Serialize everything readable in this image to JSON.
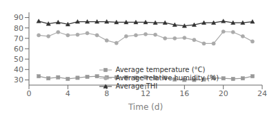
{
  "chart_data": {
    "type": "line",
    "xlabel": "Time (d)",
    "x": [
      1,
      2,
      3,
      4,
      5,
      6,
      7,
      8,
      9,
      10,
      11,
      12,
      13,
      14,
      15,
      16,
      17,
      18,
      19,
      20,
      21,
      22,
      23
    ],
    "series": [
      {
        "name": "Average temperature (°C)",
        "color": "#999999",
        "marker": "square",
        "values": [
          33.5,
          31.5,
          32.5,
          31.0,
          32.0,
          33.0,
          33.5,
          32.5,
          32.5,
          32.5,
          32.0,
          32.5,
          32.0,
          32.0,
          30.5,
          30.0,
          30.0,
          30.5,
          32.0,
          31.5,
          31.0,
          31.5,
          33.5
        ]
      },
      {
        "name": "Average relative humidity (%)",
        "color": "#aaaaaa",
        "marker": "circle",
        "values": [
          73.0,
          72.0,
          76.0,
          73.0,
          73.5,
          75.0,
          73.0,
          68.0,
          65.5,
          72.0,
          73.0,
          74.0,
          73.5,
          70.0,
          70.0,
          70.5,
          68.5,
          65.0,
          65.0,
          76.5,
          76.0,
          72.0,
          67.0
        ]
      },
      {
        "name": "Average THI",
        "color": "#333333",
        "marker": "triangle",
        "values": [
          86.5,
          84.0,
          85.5,
          83.5,
          86.0,
          86.0,
          86.0,
          86.0,
          85.5,
          85.5,
          85.5,
          85.5,
          85.0,
          85.0,
          83.0,
          82.0,
          83.0,
          85.0,
          85.0,
          86.5,
          85.0,
          85.0,
          86.0
        ]
      }
    ],
    "xlim": [
      0,
      24
    ],
    "ylim": [
      25,
      95
    ],
    "xticks": [
      0,
      4,
      8,
      12,
      16,
      20,
      24
    ],
    "yticks": [
      30,
      40,
      50,
      60,
      70,
      80,
      90
    ],
    "grid": false,
    "legend": "lower left"
  }
}
